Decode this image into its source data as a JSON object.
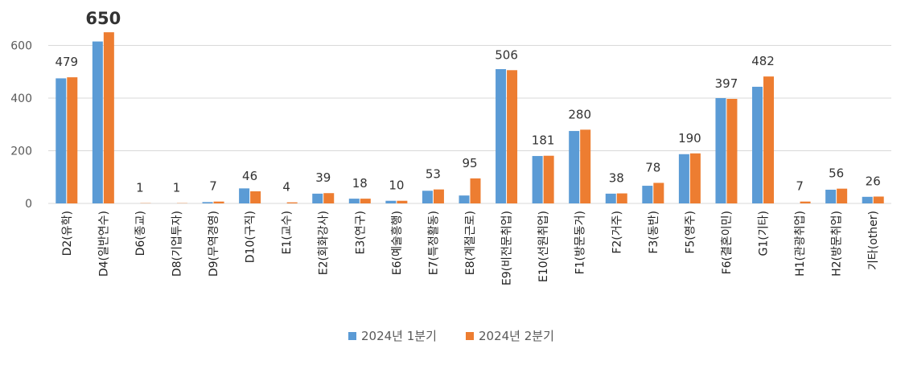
{
  "chart_data": {
    "type": "bar",
    "title": "",
    "xlabel": "",
    "ylabel": "",
    "ylim": [
      0,
      700
    ],
    "yticks": [
      0,
      200,
      400,
      600
    ],
    "grid": true,
    "legend_position": "bottom",
    "categories": [
      "D2(유학)",
      "D4(일반연수)",
      "D6(종교)",
      "D8(기업투자)",
      "D9(무역경영)",
      "D10(구직)",
      "E1(교수)",
      "E2(회화강사)",
      "E3(연구)",
      "E6(예술흥행)",
      "E7(특정활동)",
      "E8(계절근로)",
      "E9(비전문취업)",
      "E10(선원취업)",
      "F1(방문동거)",
      "F2(거주)",
      "F3(동반)",
      "F5(영주)",
      "F6(결혼이민)",
      "G1(기타)",
      "H1(관광취업)",
      "H2(방문취업)",
      "기타(other)"
    ],
    "series": [
      {
        "name": "2024년 1분기",
        "color": "#5b9bd5",
        "values": [
          475,
          615,
          0,
          0,
          5,
          57,
          0,
          37,
          18,
          10,
          48,
          30,
          510,
          180,
          275,
          37,
          67,
          187,
          400,
          443,
          0,
          52,
          25
        ]
      },
      {
        "name": "2024년 2분기",
        "color": "#ed7d31",
        "values": [
          479,
          650,
          1,
          1,
          7,
          46,
          4,
          39,
          18,
          10,
          53,
          95,
          506,
          181,
          280,
          38,
          78,
          190,
          397,
          482,
          7,
          56,
          26
        ]
      }
    ],
    "data_labels": {
      "series_index": 1,
      "values": [
        "479",
        "650",
        "1",
        "1",
        "7",
        "46",
        "4",
        "39",
        "18",
        "10",
        "53",
        "95",
        "506",
        "181",
        "280",
        "38",
        "78",
        "190",
        "397",
        "482",
        "7",
        "56",
        "26"
      ],
      "highlight_index": 1,
      "highlight_color": "#c00000"
    }
  }
}
